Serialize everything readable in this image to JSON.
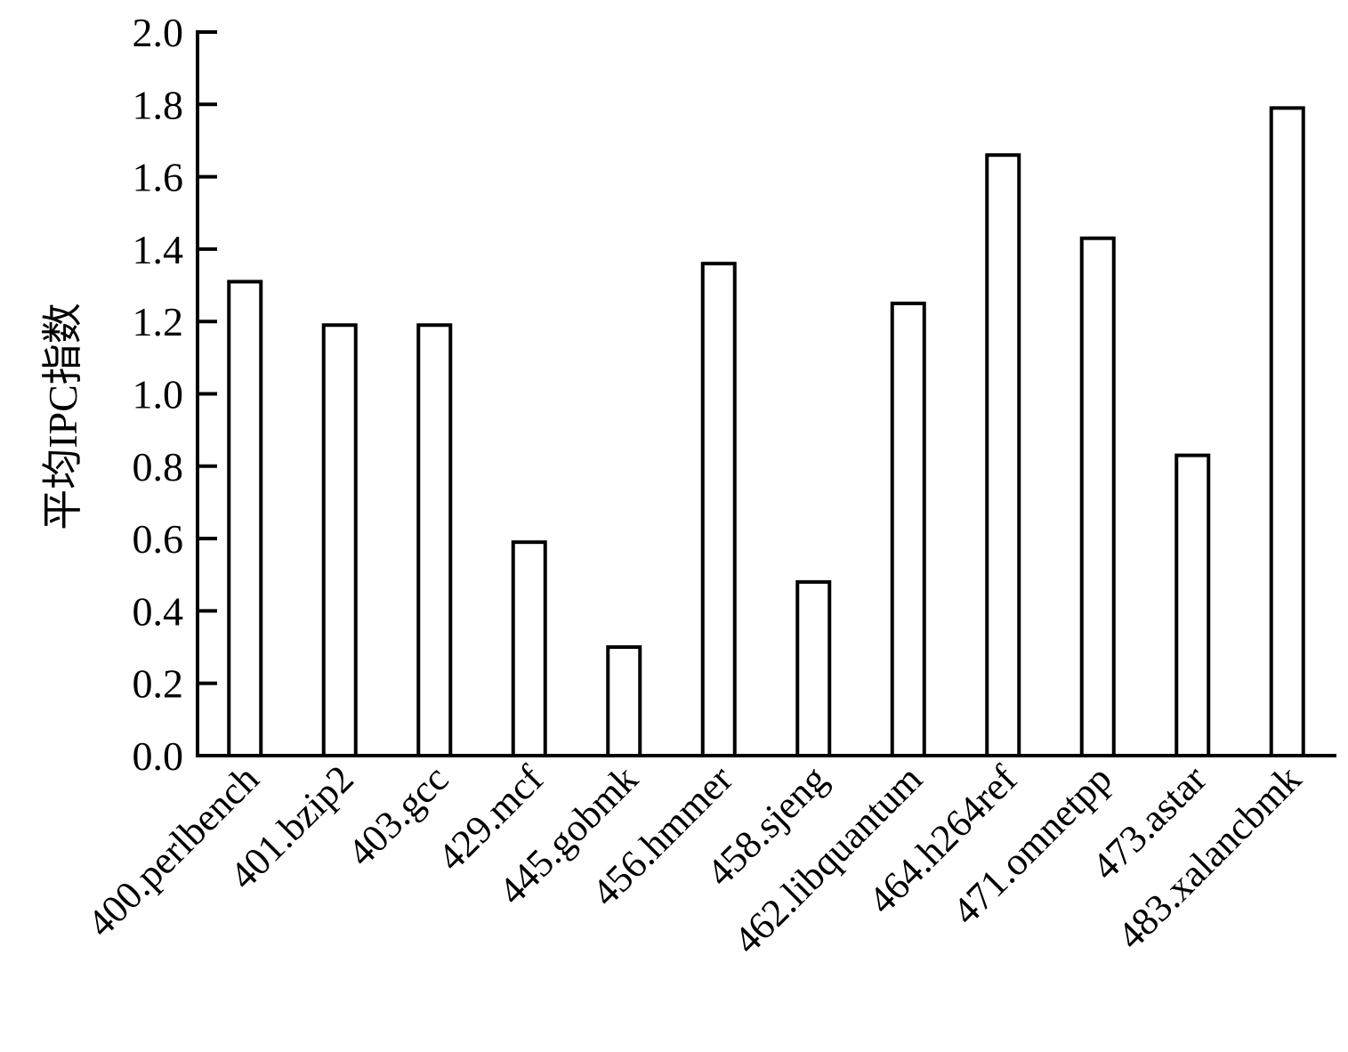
{
  "chart_data": {
    "type": "bar",
    "title": "",
    "xlabel": "",
    "ylabel": "平均IPC指数",
    "ylim": [
      0,
      2.0
    ],
    "yticks": [
      "0.0",
      "0.2",
      "0.4",
      "0.6",
      "0.8",
      "1.0",
      "1.2",
      "1.4",
      "1.6",
      "1.8",
      "2.0"
    ],
    "grid": false,
    "legend": "none",
    "categories": [
      "400.perlbench",
      "401.bzip2",
      "403.gcc",
      "429.mcf",
      "445.gobmk",
      "456.hmmer",
      "458.sjeng",
      "462.libquantum",
      "464.h264ref",
      "471.omnetpp",
      "473.astar",
      "483.xalancbmk"
    ],
    "values": [
      1.31,
      1.19,
      1.19,
      0.59,
      0.3,
      1.36,
      0.48,
      1.25,
      1.66,
      1.43,
      0.83,
      1.79
    ],
    "colors": {
      "bar_fill": "#ffffff",
      "bar_stroke": "#000000",
      "axis": "#000000"
    }
  }
}
